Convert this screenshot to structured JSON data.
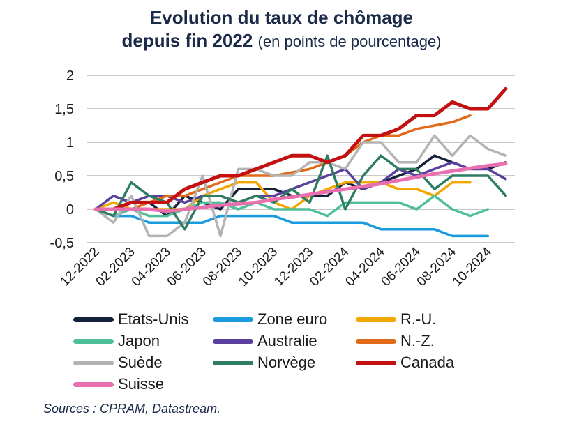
{
  "title": {
    "line1": "Evolution du taux de chômage",
    "line2_bold": "depuis fin 2022",
    "line2_sub": "(en points de pourcentage)"
  },
  "source": "Sources : CPRAM, Datastream.",
  "chart_data": {
    "type": "line",
    "title": "Evolution du taux de chômage depuis fin 2022 (en points de pourcentage)",
    "ylim": [
      -0.5,
      2
    ],
    "yticks": [
      -0.5,
      0,
      0.5,
      1,
      1.5,
      2
    ],
    "ytick_labels": [
      "-0,5",
      "0",
      "0,5",
      "1",
      "1,5",
      "2"
    ],
    "grid": true,
    "legend_position": "bottom",
    "xtick_labels": [
      {
        "index": 0,
        "label": "12-2022"
      },
      {
        "index": 2,
        "label": "02-2023"
      },
      {
        "index": 4,
        "label": "04-2023"
      },
      {
        "index": 6,
        "label": "06-2023"
      },
      {
        "index": 8,
        "label": "08-2023"
      },
      {
        "index": 10,
        "label": "10-2023"
      },
      {
        "index": 12,
        "label": "12-2023"
      },
      {
        "index": 14,
        "label": "02-2024"
      },
      {
        "index": 16,
        "label": "04-2024"
      },
      {
        "index": 18,
        "label": "06-2024"
      },
      {
        "index": 20,
        "label": "08-2024"
      },
      {
        "index": 22,
        "label": "10-2024"
      }
    ],
    "x_count": 24,
    "series": [
      {
        "name": "Etats-Unis",
        "color": "#14213d",
        "width": 3.5,
        "values": [
          0,
          0,
          0.1,
          0.1,
          -0.1,
          0.2,
          0.1,
          0,
          0.3,
          0.3,
          0.3,
          0.2,
          0.2,
          0.2,
          0.4,
          0.3,
          0.4,
          0.5,
          0.6,
          0.8,
          0.7,
          0.6,
          0.6,
          0.7
        ]
      },
      {
        "name": "Zone euro",
        "color": "#1a9be0",
        "width": 3.5,
        "values": [
          0,
          -0.1,
          -0.1,
          -0.2,
          -0.2,
          -0.2,
          -0.2,
          -0.1,
          -0.1,
          -0.1,
          -0.1,
          -0.2,
          -0.2,
          -0.2,
          -0.2,
          -0.2,
          -0.3,
          -0.3,
          -0.3,
          -0.3,
          -0.4,
          -0.4,
          -0.4
        ]
      },
      {
        "name": "R.-U.",
        "color": "#f0a800",
        "width": 3.5,
        "values": [
          0,
          0.1,
          0,
          0,
          0,
          0,
          0.2,
          0.3,
          0.4,
          0.4,
          0.1,
          0,
          0.2,
          0.3,
          0.4,
          0.4,
          0.4,
          0.3,
          0.3,
          0.2,
          0.4,
          0.4
        ]
      },
      {
        "name": "Japon",
        "color": "#4fbf9a",
        "width": 3.5,
        "values": [
          0,
          -0.1,
          0,
          -0.1,
          -0.1,
          0,
          0.1,
          0.1,
          0,
          0.1,
          0,
          0,
          0,
          -0.1,
          0.1,
          0.1,
          0.1,
          0.1,
          0,
          0.2,
          0,
          -0.1,
          0
        ]
      },
      {
        "name": "Australie",
        "color": "#5b3f9e",
        "width": 3.5,
        "values": [
          0,
          0.2,
          0.1,
          0.2,
          0.2,
          0.1,
          0.2,
          0.2,
          0.1,
          0.2,
          0.2,
          0.3,
          0.4,
          0.5,
          0.6,
          0.3,
          0.4,
          0.6,
          0.5,
          0.6,
          0.7,
          0.6,
          0.6,
          0.45
        ]
      },
      {
        "name": "N.-Z.",
        "color": "#e06a1a",
        "width": 3.5,
        "values": [
          0,
          0,
          0,
          0.1,
          0.2,
          0.2,
          0.3,
          0.4,
          0.5,
          0.5,
          0.5,
          0.55,
          0.6,
          0.7,
          0.8,
          1.0,
          1.1,
          1.1,
          1.2,
          1.25,
          1.3,
          1.4
        ]
      },
      {
        "name": "Suède",
        "color": "#b3b3b3",
        "width": 3.5,
        "values": [
          0,
          -0.2,
          0.2,
          -0.4,
          -0.4,
          -0.2,
          0.5,
          -0.4,
          0.6,
          0.6,
          0.5,
          0.5,
          0.7,
          0.7,
          0.6,
          1.0,
          1.0,
          0.7,
          0.7,
          1.1,
          0.8,
          1.1,
          0.9,
          0.8
        ]
      },
      {
        "name": "Norvège",
        "color": "#2e7d62",
        "width": 3.5,
        "values": [
          0,
          -0.1,
          0.4,
          0.2,
          0.1,
          -0.3,
          0.2,
          0.2,
          0.1,
          0.2,
          0.1,
          0.3,
          0.1,
          0.8,
          0,
          0.5,
          0.8,
          0.6,
          0.6,
          0.3,
          0.5,
          0.5,
          0.5,
          0.2
        ]
      },
      {
        "name": "Canada",
        "color": "#c41010",
        "width": 5,
        "values": [
          0,
          0,
          0.1,
          0.1,
          0.1,
          0.3,
          0.4,
          0.5,
          0.5,
          0.6,
          0.7,
          0.8,
          0.8,
          0.7,
          0.8,
          1.1,
          1.1,
          1.2,
          1.4,
          1.4,
          1.6,
          1.5,
          1.5,
          1.8
        ]
      },
      {
        "name": "Suisse",
        "color": "#ea6fae",
        "width": 5,
        "values": [
          0,
          0,
          0,
          0,
          -0.03,
          0,
          0.03,
          0.06,
          0.08,
          0.1,
          0.15,
          0.18,
          0.22,
          0.26,
          0.3,
          0.34,
          0.38,
          0.43,
          0.48,
          0.53,
          0.57,
          0.61,
          0.65,
          0.68
        ]
      }
    ]
  }
}
